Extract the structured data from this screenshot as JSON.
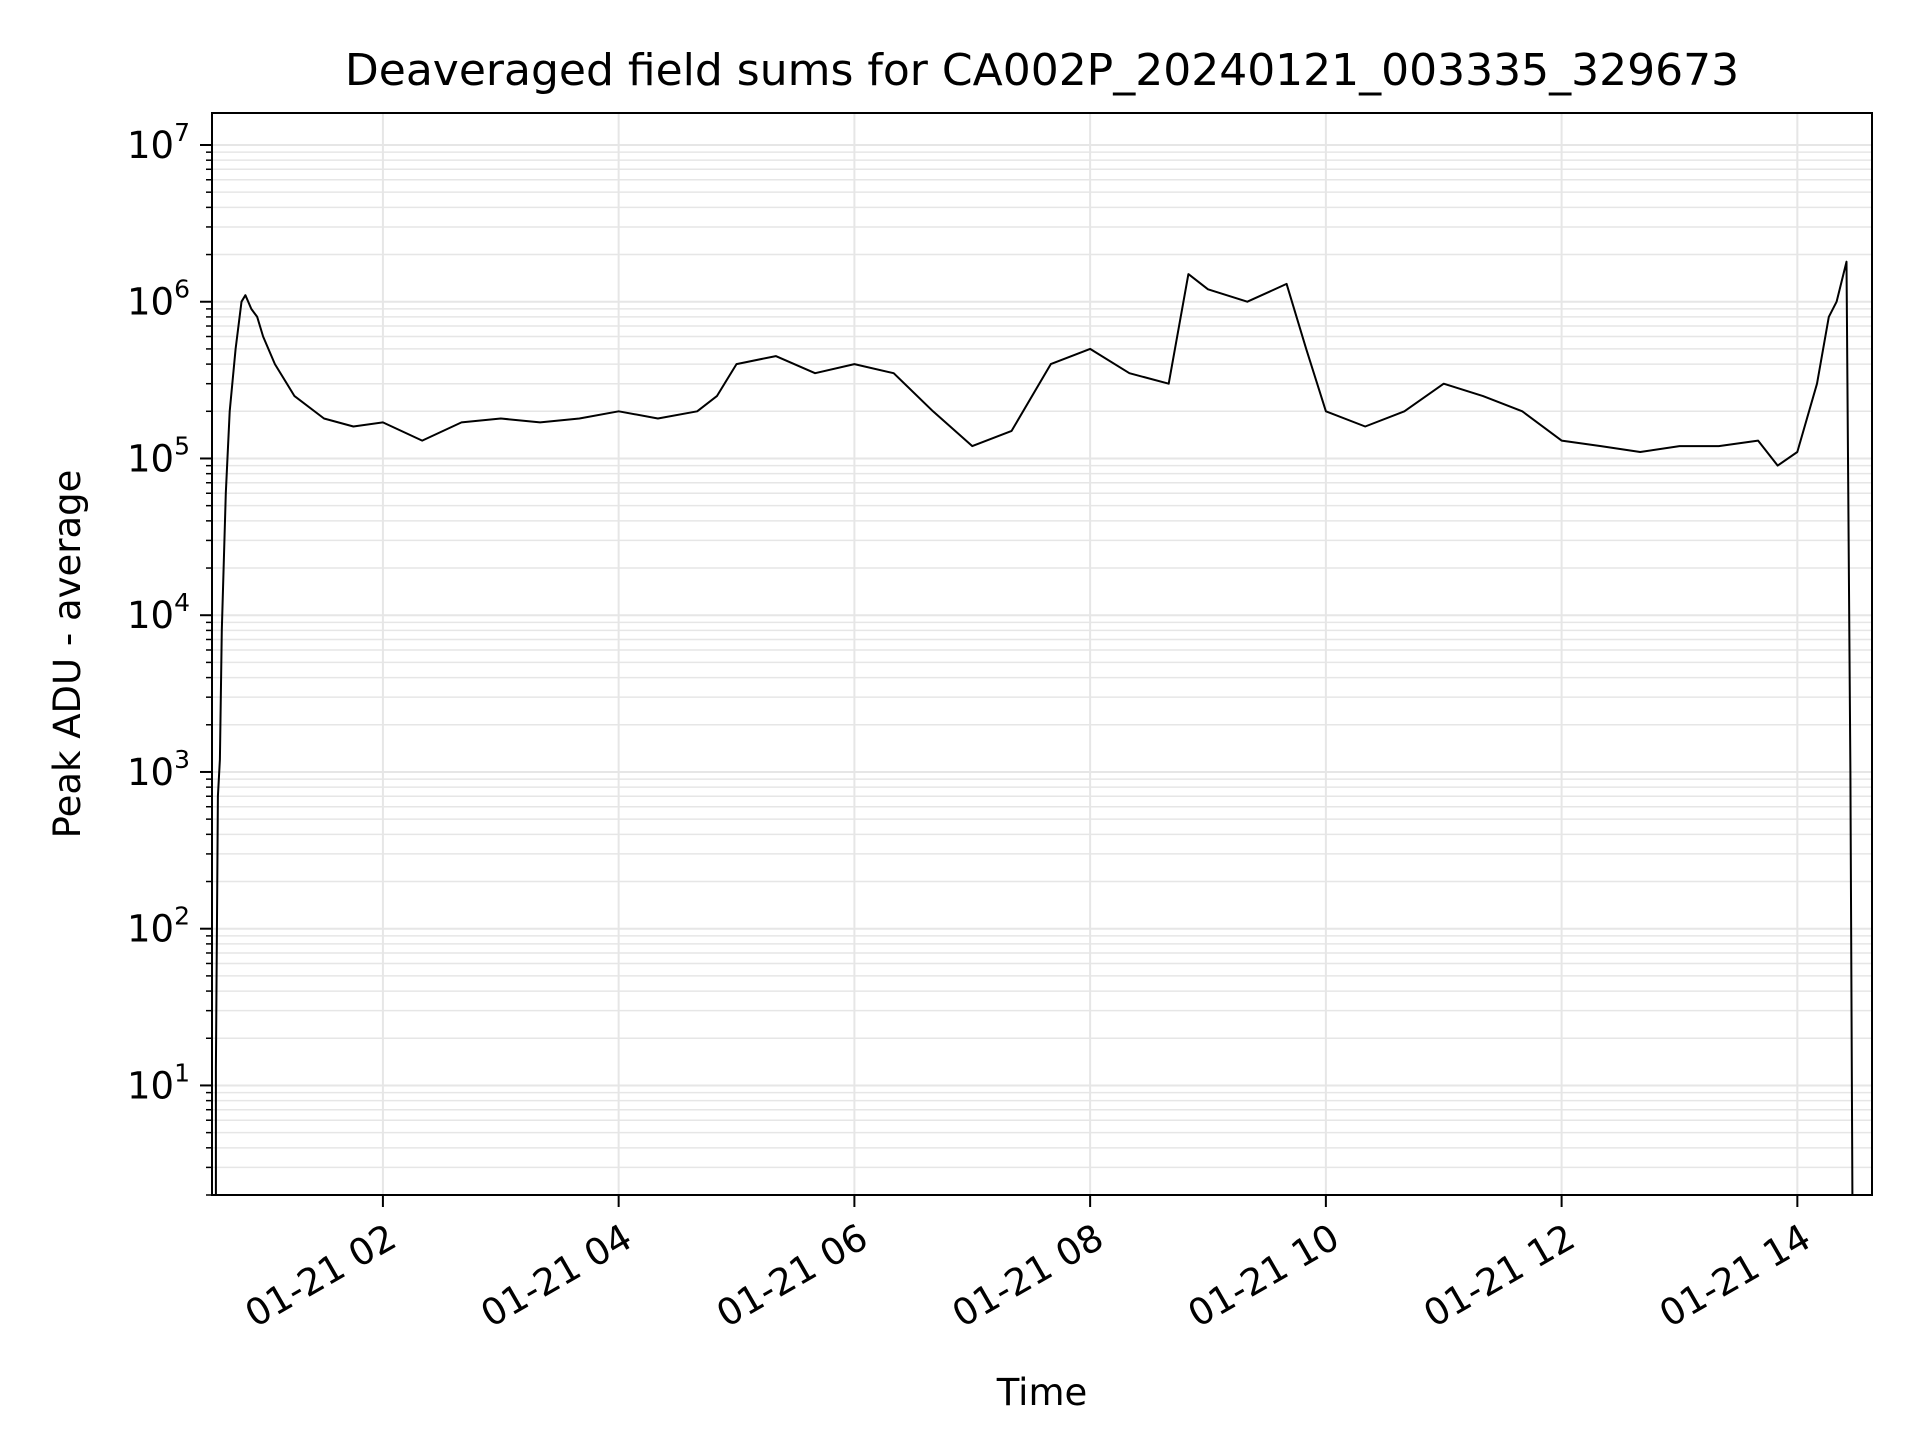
{
  "chart_data": {
    "type": "line",
    "title": "Deaveraged field sums for CA002P_20240121_003335_329673",
    "xlabel": "Time",
    "ylabel": "Peak ADU - average",
    "yscale": "log",
    "ylim": [
      2,
      16000000
    ],
    "xlim": [
      "2024-01-21 00:33",
      "2024-01-21 14:38"
    ],
    "grid": true,
    "line_color": "#000000",
    "grid_color": "#e6e6e6",
    "x_ticks": [
      {
        "value": "2024-01-21 02:00",
        "label": "01-21 02"
      },
      {
        "value": "2024-01-21 04:00",
        "label": "01-21 04"
      },
      {
        "value": "2024-01-21 06:00",
        "label": "01-21 06"
      },
      {
        "value": "2024-01-21 08:00",
        "label": "01-21 08"
      },
      {
        "value": "2024-01-21 10:00",
        "label": "01-21 10"
      },
      {
        "value": "2024-01-21 12:00",
        "label": "01-21 12"
      },
      {
        "value": "2024-01-21 14:00",
        "label": "01-21 14"
      }
    ],
    "y_ticks": [
      {
        "value": 10,
        "base": "10",
        "exp": "1"
      },
      {
        "value": 100,
        "base": "10",
        "exp": "2"
      },
      {
        "value": 1000,
        "base": "10",
        "exp": "3"
      },
      {
        "value": 10000,
        "base": "10",
        "exp": "4"
      },
      {
        "value": 100000,
        "base": "10",
        "exp": "5"
      },
      {
        "value": 1000000,
        "base": "10",
        "exp": "6"
      },
      {
        "value": 10000000,
        "base": "10",
        "exp": "7"
      }
    ],
    "series": [
      {
        "x": [
          "2024-01-21 00:35",
          "2024-01-21 00:35",
          "2024-01-21 00:36",
          "2024-01-21 00:37",
          "2024-01-21 00:38",
          "2024-01-21 00:40",
          "2024-01-21 00:42",
          "2024-01-21 00:45",
          "2024-01-21 00:48",
          "2024-01-21 00:50",
          "2024-01-21 00:53",
          "2024-01-21 00:56",
          "2024-01-21 00:59",
          "2024-01-21 01:05",
          "2024-01-21 01:15",
          "2024-01-21 01:30",
          "2024-01-21 01:45",
          "2024-01-21 02:00",
          "2024-01-21 02:20",
          "2024-01-21 02:40",
          "2024-01-21 03:00",
          "2024-01-21 03:20",
          "2024-01-21 03:40",
          "2024-01-21 04:00",
          "2024-01-21 04:20",
          "2024-01-21 04:40",
          "2024-01-21 04:50",
          "2024-01-21 05:00",
          "2024-01-21 05:20",
          "2024-01-21 05:40",
          "2024-01-21 06:00",
          "2024-01-21 06:20",
          "2024-01-21 06:40",
          "2024-01-21 07:00",
          "2024-01-21 07:20",
          "2024-01-21 07:40",
          "2024-01-21 08:00",
          "2024-01-21 08:20",
          "2024-01-21 08:40",
          "2024-01-21 08:50",
          "2024-01-21 09:00",
          "2024-01-21 09:20",
          "2024-01-21 09:40",
          "2024-01-21 09:50",
          "2024-01-21 10:00",
          "2024-01-21 10:20",
          "2024-01-21 10:40",
          "2024-01-21 11:00",
          "2024-01-21 11:20",
          "2024-01-21 11:40",
          "2024-01-21 12:00",
          "2024-01-21 12:20",
          "2024-01-21 12:40",
          "2024-01-21 13:00",
          "2024-01-21 13:20",
          "2024-01-21 13:40",
          "2024-01-21 13:50",
          "2024-01-21 14:00",
          "2024-01-21 14:10",
          "2024-01-21 14:16",
          "2024-01-21 14:20",
          "2024-01-21 14:25",
          "2024-01-21 14:27",
          "2024-01-21 14:28"
        ],
        "values": [
          2,
          13,
          700,
          1200,
          8000,
          60000,
          200000,
          500000,
          1000000,
          1100000,
          900000,
          800000,
          600000,
          400000,
          250000,
          180000,
          160000,
          170000,
          130000,
          170000,
          180000,
          170000,
          180000,
          200000,
          180000,
          200000,
          250000,
          400000,
          450000,
          350000,
          400000,
          350000,
          200000,
          120000,
          150000,
          400000,
          500000,
          350000,
          300000,
          1500000,
          1200000,
          1000000,
          1300000,
          500000,
          200000,
          160000,
          200000,
          300000,
          250000,
          200000,
          130000,
          120000,
          110000,
          120000,
          120000,
          130000,
          90000,
          110000,
          300000,
          800000,
          1000000,
          1800000,
          1000,
          2
        ]
      }
    ]
  }
}
